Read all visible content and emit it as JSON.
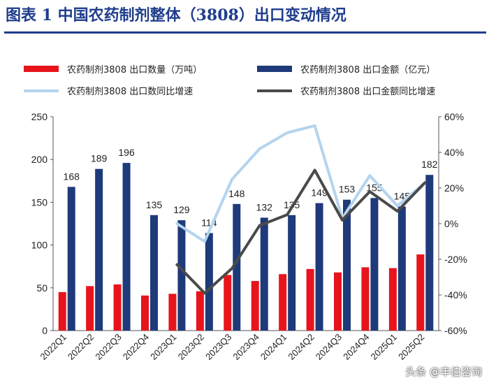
{
  "header": {
    "title": "图表 1   中国农药制剂整体（3808）出口变动情况"
  },
  "chart_data": {
    "type": "bar+line",
    "title": "图表 1   中国农药制剂整体（3808）出口变动情况",
    "categories": [
      "2022Q1",
      "2022Q2",
      "2022Q3",
      "2022Q4",
      "2023Q1",
      "2023Q2",
      "2023Q3",
      "2023Q4",
      "2024Q1",
      "2024Q2",
      "2024Q3",
      "2024Q4",
      "2025Q1",
      "2025Q2"
    ],
    "y_left": {
      "ylim": [
        0,
        250
      ],
      "ticks": [
        0,
        50,
        100,
        150,
        200,
        250
      ]
    },
    "y_right": {
      "ylim": [
        -60,
        60
      ],
      "ticks": [
        -60,
        -40,
        -20,
        0,
        20,
        40,
        60
      ],
      "format": "percent"
    },
    "series": [
      {
        "name": "农药制剂3808  出口数量（万吨）",
        "type": "bar",
        "axis": "left",
        "color": "#e8141c",
        "values": [
          45,
          52,
          54,
          41,
          43,
          46,
          65,
          58,
          66,
          72,
          68,
          74,
          73,
          89
        ]
      },
      {
        "name": "农药制剂3808  出口金额（亿元）",
        "type": "bar",
        "axis": "left",
        "color": "#1f3a7a",
        "values": [
          168,
          189,
          196,
          135,
          129,
          114,
          148,
          132,
          135,
          149,
          153,
          155,
          145,
          182
        ],
        "labels": [
          "168",
          "189",
          "196",
          "135",
          "129",
          "114",
          "148",
          "132",
          "135",
          "149",
          "153",
          "155",
          "145",
          "182"
        ]
      },
      {
        "name": "农药制剂3808  出口数同比增速",
        "type": "line",
        "axis": "right",
        "color": "#b4d4ee",
        "values": [
          null,
          null,
          null,
          null,
          0,
          -10,
          25,
          42,
          51,
          55,
          3,
          27,
          10,
          23
        ]
      },
      {
        "name": "农药制剂3808  出口金额同比增速",
        "type": "line",
        "axis": "right",
        "color": "#4a4a4a",
        "values": [
          null,
          null,
          null,
          null,
          -23,
          -39,
          -25,
          -1,
          5,
          30,
          2,
          18,
          7,
          23
        ]
      }
    ]
  },
  "watermark": {
    "text": "头条 @丰伯咨询"
  }
}
